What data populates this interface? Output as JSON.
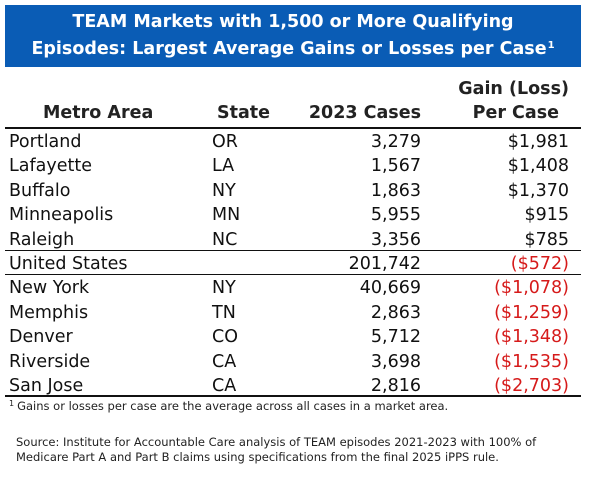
{
  "title": {
    "line1": "TEAM Markets with 1,500 or More Qualifying",
    "line2": "Episodes: Largest Average Gains or Losses per Case",
    "sup": "1"
  },
  "columns": {
    "metro": "Metro Area",
    "state": "State",
    "cases": "2023 Cases",
    "gain_line1": "Gain (Loss)",
    "gain_line2": "Per Case"
  },
  "colors": {
    "title_bg": "#0a5cb5",
    "loss_text": "#d61a1a"
  },
  "rows": [
    {
      "metro": "Portland",
      "state": "OR",
      "cases": "3,279",
      "gain": "$1,981",
      "negative": false
    },
    {
      "metro": "Lafayette",
      "state": "LA",
      "cases": "1,567",
      "gain": "$1,408",
      "negative": false
    },
    {
      "metro": "Buffalo",
      "state": "NY",
      "cases": "1,863",
      "gain": "$1,370",
      "negative": false
    },
    {
      "metro": "Minneapolis",
      "state": "MN",
      "cases": "5,955",
      "gain": "$915",
      "negative": false
    },
    {
      "metro": "Raleigh",
      "state": "NC",
      "cases": "3,356",
      "gain": "$785",
      "negative": false
    },
    {
      "metro": "United States",
      "state": "",
      "cases": "201,742",
      "gain": "($572)",
      "negative": true
    },
    {
      "metro": "New York",
      "state": "NY",
      "cases": "40,669",
      "gain": "($1,078)",
      "negative": true
    },
    {
      "metro": "Memphis",
      "state": "TN",
      "cases": "2,863",
      "gain": "($1,259)",
      "negative": true
    },
    {
      "metro": "Denver",
      "state": "CO",
      "cases": "5,712",
      "gain": "($1,348)",
      "negative": true
    },
    {
      "metro": "Riverside",
      "state": "CA",
      "cases": "3,698",
      "gain": "($1,535)",
      "negative": true
    },
    {
      "metro": "San Jose",
      "state": "CA",
      "cases": "2,816",
      "gain": "($2,703)",
      "negative": true
    }
  ],
  "footnote": {
    "sup": "1",
    "text": "Gains or losses per case are the average across all cases in a market area."
  },
  "source": "Source: Institute for Accountable Care analysis of TEAM episodes 2021-2023 with 100% of Medicare Part A and Part B claims using specifications from the final 2025 iPPS rule."
}
